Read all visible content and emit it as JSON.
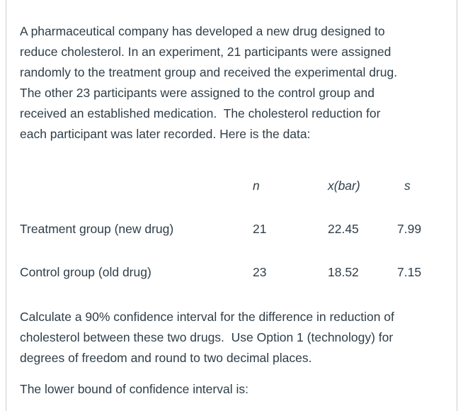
{
  "colors": {
    "text": "#2f3e48",
    "border": "#c7cdd1",
    "background": "#ffffff"
  },
  "intro": {
    "lines": [
      "A pharmaceutical company has developed a new drug designed to",
      "reduce cholesterol. In an experiment, 21 participants were assigned",
      "randomly to the treatment group and received the experimental drug.",
      "The other 23 participants were assigned to the control group and",
      "received an established medication.  The cholesterol reduction for",
      "each participant was later recorded. Here is the data:"
    ]
  },
  "table": {
    "headers": {
      "label": "",
      "n": "n",
      "xbar": "x(bar)",
      "s": "s"
    },
    "rows": [
      {
        "label": "Treatment group (new drug)",
        "n": "21",
        "xbar": "22.45",
        "s": "7.99"
      },
      {
        "label": "Control group (old drug)",
        "n": "23",
        "xbar": "18.52",
        "s": "7.15"
      }
    ]
  },
  "question": {
    "lines": [
      "Calculate a 90% confidence interval for the difference in reduction of",
      "cholesterol between these two drugs.  Use Option 1 (technology) for",
      "degrees of freedom and round to two decimal places."
    ]
  },
  "prompt": {
    "text": "The lower bound of confidence interval is:"
  }
}
